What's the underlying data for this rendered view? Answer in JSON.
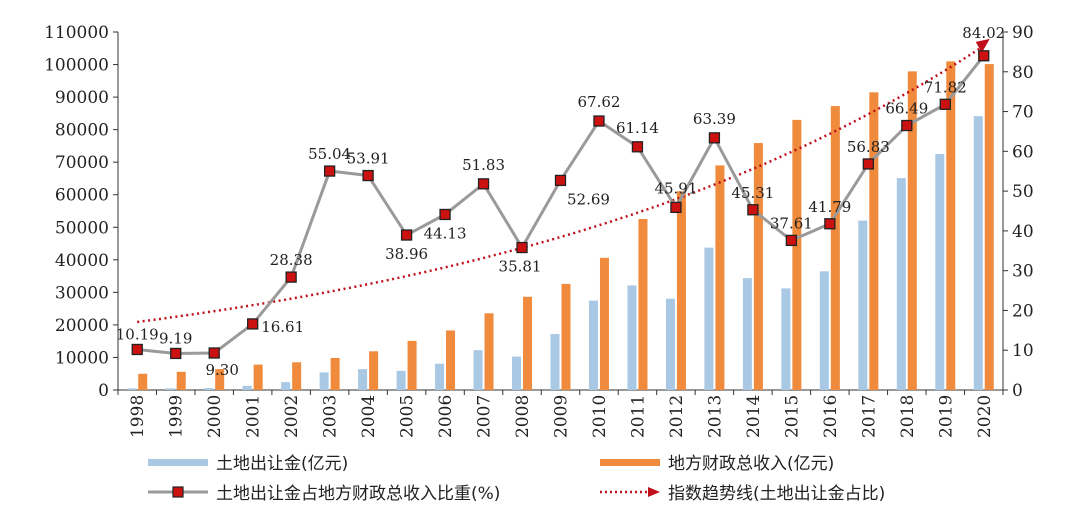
{
  "chart_data": {
    "type": "bar+line",
    "years": [
      "1998",
      "1999",
      "2000",
      "2001",
      "2002",
      "2003",
      "2004",
      "2005",
      "2006",
      "2007",
      "2008",
      "2009",
      "2010",
      "2011",
      "2012",
      "2013",
      "2014",
      "2015",
      "2016",
      "2017",
      "2018",
      "2019",
      "2020"
    ],
    "series": [
      {
        "name": "土地出让金(亿元)",
        "type": "bar",
        "axis": "left",
        "color": "#a8c8e4",
        "values": [
          507,
          514,
          596,
          1296,
          2417,
          5421,
          6412,
          5884,
          8078,
          12217,
          10260,
          17180,
          27464,
          32126,
          28042,
          43745,
          34377,
          31221,
          36462,
          52059,
          65096,
          72517,
          84142
        ]
      },
      {
        "name": "地方财政总收入(亿元)",
        "type": "bar",
        "axis": "left",
        "color": "#f08a3c",
        "values": [
          4984,
          5595,
          6406,
          7803,
          8515,
          9850,
          11893,
          15101,
          18304,
          23573,
          28650,
          32603,
          40613,
          52547,
          61078,
          69011,
          75877,
          83002,
          87239,
          91469,
          97904,
          100974,
          100143
        ]
      },
      {
        "name": "土地出让金占地方财政总收入比重(%)",
        "type": "line",
        "axis": "right",
        "color": "#9a9a9a",
        "marker_color": "#cc1111",
        "values": [
          10.19,
          9.19,
          9.3,
          16.61,
          28.38,
          55.04,
          53.91,
          38.96,
          44.13,
          51.83,
          35.81,
          52.69,
          67.62,
          61.14,
          45.91,
          63.39,
          45.31,
          37.61,
          41.79,
          56.83,
          66.49,
          71.82,
          84.02
        ],
        "labels": [
          "10.19",
          "9.19",
          "9.30",
          "16.61",
          "28.38",
          "55.04",
          "53.91",
          "38.96",
          "44.13",
          "51.83",
          "35.81",
          "52.69",
          "67.62",
          "61.14",
          "45.91",
          "63.39",
          "45.31",
          "37.61",
          "41.79",
          "56.83",
          "66.49",
          "71.82",
          "84.02"
        ]
      },
      {
        "name": "指数趋势线(土地出让金占比)",
        "type": "trend",
        "axis": "right",
        "color": "#c0101a",
        "start_value": 17.1,
        "end_value": 86.5
      }
    ],
    "left_axis": {
      "min": 0,
      "max": 110000,
      "ticks": [
        "0",
        "10000",
        "20000",
        "30000",
        "40000",
        "50000",
        "60000",
        "70000",
        "80000",
        "90000",
        "100000",
        "110000"
      ]
    },
    "right_axis": {
      "min": 0,
      "max": 90,
      "ticks": [
        "0",
        "10",
        "20",
        "30",
        "40",
        "50",
        "60",
        "70",
        "80",
        "90"
      ]
    }
  },
  "legend": {
    "land": "土地出让金(亿元)",
    "fiscal": "地方财政总收入(亿元)",
    "ratio": "土地出让金占地方财政总收入比重(%)",
    "trend": "指数趋势线(土地出让金占比)"
  }
}
